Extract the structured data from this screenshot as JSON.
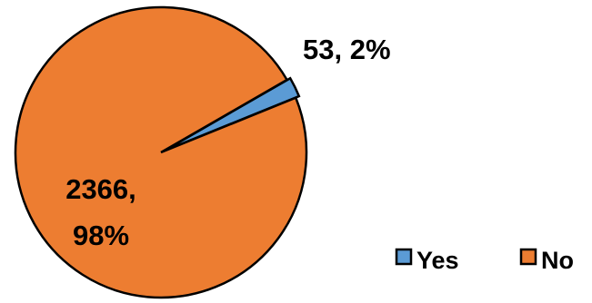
{
  "chart_data": {
    "type": "pie",
    "categories": [
      "Yes",
      "No"
    ],
    "values": [
      53,
      2366
    ],
    "percent_labels": [
      "2%",
      "98%"
    ],
    "data_labels": [
      [
        "53, 2%"
      ],
      [
        "2366,",
        "98%"
      ]
    ],
    "colors": [
      "#5b9bd5",
      "#ed7d31"
    ],
    "slice_outline": "#000000",
    "start_angle_degrees": 60,
    "exploded_slice": "Yes",
    "legend": {
      "position": "bottom-right",
      "entries": [
        "Yes",
        "No"
      ]
    }
  }
}
